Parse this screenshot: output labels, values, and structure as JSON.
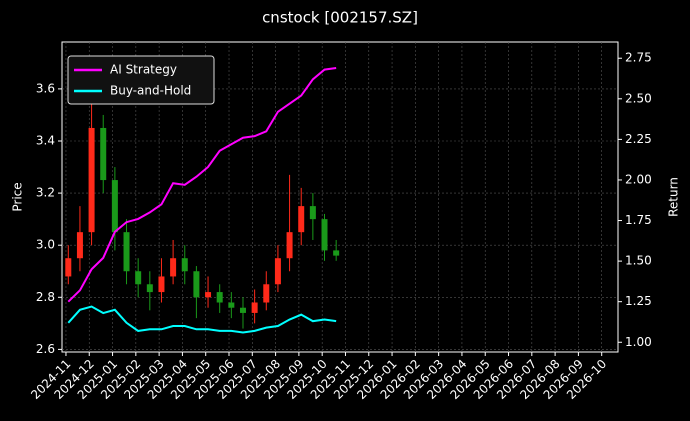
{
  "chart_data": {
    "type": "candlestick",
    "title": "cnstock [002157.SZ]",
    "ylabel": "Price",
    "y2label": "Return",
    "up_color": "#ff2a1a",
    "down_color": "#1a9a1a",
    "grid": true,
    "legend": "upper left",
    "x": [
      0.1,
      0.6,
      1.1,
      1.6,
      2.1,
      2.6,
      3.1,
      3.6,
      4.1,
      4.6,
      5.1,
      5.6,
      6.1,
      6.6,
      7.1,
      7.6,
      8.1,
      8.6,
      9.1,
      9.6,
      10.1,
      10.6,
      11.1,
      11.6
    ],
    "open": [
      2.88,
      2.95,
      3.05,
      3.45,
      3.25,
      3.05,
      2.9,
      2.85,
      2.82,
      2.88,
      2.95,
      2.9,
      2.8,
      2.82,
      2.78,
      2.76,
      2.74,
      2.78,
      2.85,
      2.95,
      3.05,
      3.15,
      3.1,
      2.98
    ],
    "high": [
      3.0,
      3.15,
      3.6,
      3.5,
      3.3,
      3.1,
      2.95,
      2.9,
      2.95,
      3.02,
      3.0,
      2.92,
      2.88,
      2.85,
      2.82,
      2.8,
      2.83,
      2.9,
      3.0,
      3.27,
      3.22,
      3.2,
      3.12,
      3.02
    ],
    "low": [
      2.85,
      2.9,
      3.0,
      3.2,
      2.98,
      2.85,
      2.8,
      2.75,
      2.78,
      2.85,
      2.85,
      2.72,
      2.76,
      2.74,
      2.72,
      2.68,
      2.7,
      2.75,
      2.82,
      2.9,
      3.0,
      3.02,
      2.94,
      2.94
    ],
    "close": [
      2.95,
      3.05,
      3.45,
      3.25,
      3.05,
      2.9,
      2.85,
      2.82,
      2.88,
      2.95,
      2.9,
      2.8,
      2.82,
      2.78,
      2.76,
      2.74,
      2.78,
      2.85,
      2.95,
      3.05,
      3.15,
      3.1,
      2.98,
      2.96
    ],
    "series": [
      {
        "name": "AI Strategy",
        "color": "#ff00ff",
        "axis": "y2",
        "values": [
          1.25,
          1.32,
          1.45,
          1.52,
          1.68,
          1.74,
          1.76,
          1.8,
          1.85,
          1.98,
          1.97,
          2.02,
          2.08,
          2.18,
          2.22,
          2.26,
          2.27,
          2.3,
          2.42,
          2.47,
          2.52,
          2.62,
          2.68,
          2.69
        ]
      },
      {
        "name": "Buy-and-Hold",
        "color": "#00ffff",
        "axis": "y2",
        "values": [
          1.12,
          1.2,
          1.22,
          1.18,
          1.2,
          1.12,
          1.07,
          1.08,
          1.08,
          1.1,
          1.1,
          1.08,
          1.08,
          1.07,
          1.07,
          1.06,
          1.07,
          1.09,
          1.1,
          1.14,
          1.17,
          1.13,
          1.14,
          1.13
        ]
      }
    ],
    "xlim": [
      -0.17,
      23.7
    ],
    "xticks": [
      {
        "value": 0,
        "label": "2024-11"
      },
      {
        "value": 1,
        "label": "2024-12"
      },
      {
        "value": 2,
        "label": "2025-01"
      },
      {
        "value": 3,
        "label": "2025-02"
      },
      {
        "value": 4,
        "label": "2025-03"
      },
      {
        "value": 5,
        "label": "2025-04"
      },
      {
        "value": 6,
        "label": "2025-05"
      },
      {
        "value": 7,
        "label": "2025-06"
      },
      {
        "value": 8,
        "label": "2025-07"
      },
      {
        "value": 9,
        "label": "2025-08"
      },
      {
        "value": 10,
        "label": "2025-09"
      },
      {
        "value": 11,
        "label": "2025-10"
      },
      {
        "value": 12,
        "label": "2025-11"
      },
      {
        "value": 13,
        "label": "2025-12"
      },
      {
        "value": 14,
        "label": "2026-01"
      },
      {
        "value": 15,
        "label": "2026-02"
      },
      {
        "value": 16,
        "label": "2026-03"
      },
      {
        "value": 17,
        "label": "2026-04"
      },
      {
        "value": 18,
        "label": "2026-05"
      },
      {
        "value": 19,
        "label": "2026-06"
      },
      {
        "value": 20,
        "label": "2026-07"
      },
      {
        "value": 21,
        "label": "2026-08"
      },
      {
        "value": 22,
        "label": "2026-09"
      },
      {
        "value": 23,
        "label": "2026-10"
      }
    ],
    "ylim": [
      2.59,
      3.78
    ],
    "yticks": [
      2.6,
      2.8,
      {
        "value": 3,
        "label": "3.0"
      },
      3.2,
      3.4,
      3.6
    ],
    "y2lim": [
      0.94,
      2.85
    ],
    "y2ticks": [
      {
        "value": 1,
        "label": "1.00"
      },
      1.25,
      {
        "value": 1.5,
        "label": "1.50"
      },
      1.75,
      {
        "value": 2,
        "label": "2.00"
      },
      2.25,
      {
        "value": 2.5,
        "label": "2.50"
      },
      2.75
    ]
  }
}
